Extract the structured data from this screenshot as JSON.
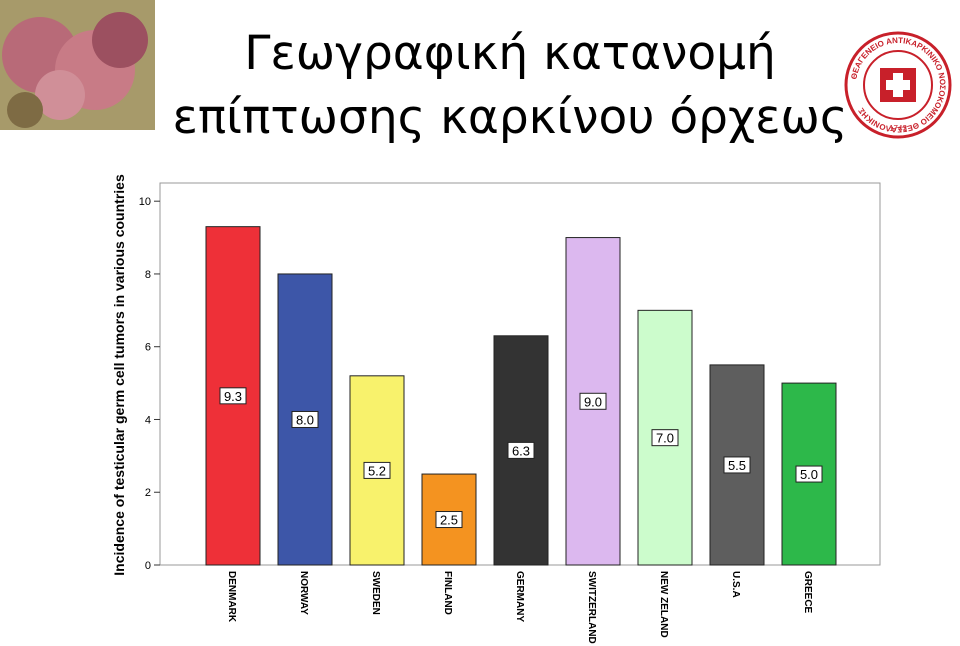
{
  "chart_data": {
    "type": "bar",
    "title": "Γεωγραφική κατανομή επίπτωσης καρκίνου όρχεως",
    "y_label": "Incidence of testicular germ cell tumors in various countries",
    "categories": [
      "DENMARK",
      "NORWAY",
      "SWEDEN",
      "FINLAND",
      "GERMANY",
      "SWITZERLAND",
      "NEW ZELAND",
      "U.S.A",
      "GREECE"
    ],
    "values": [
      9.3,
      8.0,
      5.2,
      2.5,
      6.3,
      9.0,
      7.0,
      5.5,
      5.0
    ],
    "value_labels": [
      "9.3",
      "8.0",
      "5.2",
      "2.5",
      "6.3",
      "9.0",
      "7.0",
      "5.5",
      "5.0"
    ],
    "colors": [
      "#ee3038",
      "#3d56a8",
      "#f8f26c",
      "#f49320",
      "#333333",
      "#dcb8ef",
      "#ccfccc",
      "#5e5e5e",
      "#2db84a"
    ],
    "ylim": [
      0,
      10.5
    ],
    "yticks": [
      0,
      2,
      4,
      6,
      8,
      10
    ],
    "grid": false
  },
  "logo": {
    "text": "ΘΕΑΓΕΝΕΙΟ ΑΝΤΙΚΑΡΚΙΝΙΚΟ ΝΟΣΟΚΟΜΕΙΟ ΘΕΣΣΑΛΟΝΙΚΗΣ",
    "year": "1743"
  }
}
